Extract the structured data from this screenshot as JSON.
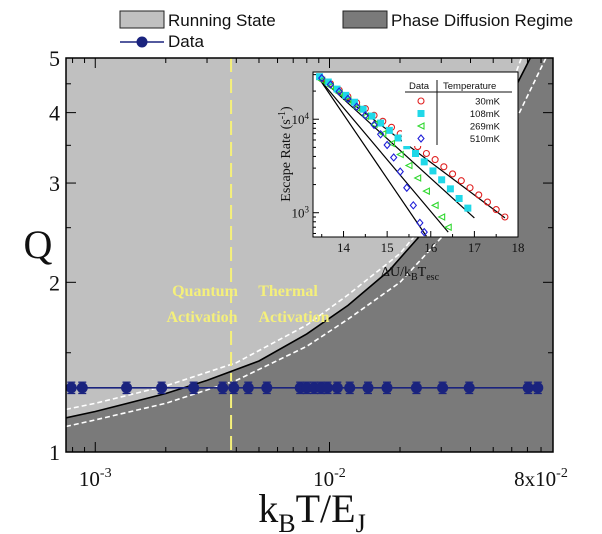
{
  "legend": {
    "items": [
      {
        "label": "Running State",
        "kind": "patch",
        "color": "#c0c0c0"
      },
      {
        "label": "Phase Diffusion Regime",
        "kind": "patch",
        "color": "#7a7a7a"
      },
      {
        "label": "Data",
        "kind": "line-marker",
        "color": "#1a237e"
      }
    ]
  },
  "annotations": {
    "quantum": [
      "Quantum",
      "Activation"
    ],
    "thermal": [
      "Thermal",
      "Activation"
    ],
    "annotation_color": "#f5f07a"
  },
  "chart_data": [
    {
      "type": "scatter",
      "role": "main",
      "xlabel": "kBT/EJ",
      "xlabel_parts": {
        "base1": "k",
        "sub1": "B",
        "base2": "T/E",
        "sub2": "J"
      },
      "ylabel": "Q",
      "x_scale": "log",
      "y_scale": "log",
      "xlim": [
        0.00075,
        0.09
      ],
      "ylim": [
        1.0,
        5.0
      ],
      "x_ticks": [
        {
          "value": 0.001,
          "base": "10",
          "exp": "-3"
        },
        {
          "value": 0.01,
          "base": "10",
          "exp": "-2"
        },
        {
          "value": 0.08,
          "base": "8x10",
          "exp": "-2"
        }
      ],
      "y_ticks": [
        {
          "value": 1,
          "label": "1"
        },
        {
          "value": 2,
          "label": "2"
        },
        {
          "value": 3,
          "label": "3"
        },
        {
          "value": 4,
          "label": "4"
        },
        {
          "value": 5,
          "label": "5"
        }
      ],
      "regions": {
        "running_color": "#c0c0c0",
        "phase_diffusion_color": "#7a7a7a"
      },
      "boundary_curve": [
        [
          0.00075,
          1.15
        ],
        [
          0.001,
          1.18
        ],
        [
          0.002,
          1.27
        ],
        [
          0.003,
          1.34
        ],
        [
          0.005,
          1.45
        ],
        [
          0.008,
          1.62
        ],
        [
          0.012,
          1.82
        ],
        [
          0.018,
          2.1
        ],
        [
          0.025,
          2.45
        ],
        [
          0.035,
          2.95
        ],
        [
          0.045,
          3.45
        ],
        [
          0.055,
          4.0
        ],
        [
          0.065,
          4.6
        ],
        [
          0.072,
          5.0
        ]
      ],
      "dashed_curves": [
        [
          [
            0.00075,
            1.19
          ],
          [
            0.001,
            1.22
          ],
          [
            0.002,
            1.31
          ],
          [
            0.004,
            1.44
          ],
          [
            0.008,
            1.68
          ],
          [
            0.012,
            1.9
          ],
          [
            0.02,
            2.25
          ],
          [
            0.03,
            2.75
          ],
          [
            0.045,
            3.6
          ],
          [
            0.06,
            4.5
          ],
          [
            0.066,
            5.0
          ]
        ],
        [
          [
            0.00075,
            1.11
          ],
          [
            0.001,
            1.14
          ],
          [
            0.002,
            1.22
          ],
          [
            0.004,
            1.34
          ],
          [
            0.008,
            1.54
          ],
          [
            0.012,
            1.72
          ],
          [
            0.02,
            2.0
          ],
          [
            0.03,
            2.4
          ],
          [
            0.045,
            3.05
          ],
          [
            0.06,
            3.75
          ],
          [
            0.08,
            4.8
          ],
          [
            0.084,
            5.0
          ]
        ]
      ],
      "crossover_x": 0.0038,
      "data": {
        "name": "Data",
        "q": 1.3,
        "q_err": 0.03,
        "x": [
          0.00079,
          0.00088,
          0.00136,
          0.00192,
          0.00263,
          0.0035,
          0.0039,
          0.0045,
          0.0054,
          0.0075,
          0.008,
          0.0086,
          0.0092,
          0.0098,
          0.0108,
          0.0122,
          0.0146,
          0.0176,
          0.0235,
          0.0304,
          0.0395,
          0.0705,
          0.0775
        ]
      },
      "data_color": "#1a237e"
    },
    {
      "type": "scatter",
      "role": "inset",
      "xlabel": "ΔU/kBTesc",
      "xlabel_parts": {
        "base1": "ΔU/k",
        "sub1": "B",
        "base2": "T",
        "sub2": "esc"
      },
      "ylabel": "Escape Rate (s-1)",
      "ylabel_parts": {
        "base": "Escape Rate (s",
        "sup": "-1",
        "end": ")"
      },
      "x_scale": "linear",
      "y_scale": "log",
      "xlim": [
        13.3,
        18.0
      ],
      "ylim": [
        550,
        32000
      ],
      "x_ticks": [
        14,
        15,
        16,
        17,
        18
      ],
      "y_ticks": [
        {
          "value": 1000,
          "base": "10",
          "exp": "3"
        },
        {
          "value": 10000,
          "base": "10",
          "exp": "4"
        }
      ],
      "legend_header": [
        "Data",
        "Temperature"
      ],
      "series": [
        {
          "name": "30mK",
          "marker": "circle",
          "color": "#e02020",
          "points": [
            [
              13.5,
              27000
            ],
            [
              13.7,
              24000
            ],
            [
              13.9,
              20500
            ],
            [
              14.1,
              17500
            ],
            [
              14.3,
              15000
            ],
            [
              14.5,
              13000
            ],
            [
              14.7,
              11000
            ],
            [
              14.9,
              9500
            ],
            [
              15.1,
              8200
            ],
            [
              15.3,
              7000
            ],
            [
              15.5,
              6000
            ],
            [
              15.7,
              5100
            ],
            [
              15.9,
              4300
            ],
            [
              16.1,
              3700
            ],
            [
              16.3,
              3100
            ],
            [
              16.5,
              2600
            ],
            [
              16.7,
              2200
            ],
            [
              16.9,
              1850
            ],
            [
              17.1,
              1550
            ],
            [
              17.3,
              1300
            ],
            [
              17.5,
              1080
            ],
            [
              17.7,
              900
            ]
          ],
          "fit": [
            [
              13.4,
              28000
            ],
            [
              17.7,
              880
            ]
          ]
        },
        {
          "name": "108mK",
          "marker": "square",
          "color": "#20d8e8",
          "points": [
            [
              13.45,
              28500
            ],
            [
              13.65,
              25000
            ],
            [
              13.85,
              21000
            ],
            [
              14.05,
              18000
            ],
            [
              14.25,
              15200
            ],
            [
              14.45,
              12800
            ],
            [
              14.65,
              10800
            ],
            [
              14.85,
              9100
            ],
            [
              15.05,
              7600
            ],
            [
              15.25,
              6300
            ],
            [
              15.45,
              5200
            ],
            [
              15.65,
              4300
            ],
            [
              15.85,
              3500
            ],
            [
              16.05,
              2800
            ],
            [
              16.25,
              2250
            ],
            [
              16.45,
              1800
            ],
            [
              16.65,
              1420
            ],
            [
              16.85,
              1120
            ]
          ],
          "fit": [
            [
              13.4,
              29500
            ],
            [
              17.0,
              880
            ]
          ]
        },
        {
          "name": "269mK",
          "marker": "triangle",
          "color": "#30d830",
          "points": [
            [
              13.5,
              26000
            ],
            [
              13.7,
              22500
            ],
            [
              13.9,
              19000
            ],
            [
              14.1,
              16000
            ],
            [
              14.3,
              13200
            ],
            [
              14.5,
              10800
            ],
            [
              14.7,
              8800
            ],
            [
              14.9,
              7000
            ],
            [
              15.1,
              5500
            ],
            [
              15.3,
              4200
            ],
            [
              15.5,
              3200
            ],
            [
              15.7,
              2350
            ],
            [
              15.9,
              1700
            ],
            [
              16.1,
              1200
            ],
            [
              16.25,
              900
            ],
            [
              16.4,
              700
            ]
          ],
          "fit": [
            [
              13.4,
              28500
            ],
            [
              16.4,
              620
            ]
          ]
        },
        {
          "name": "510mK",
          "marker": "diamond",
          "color": "#2020d8",
          "points": [
            [
              13.5,
              27500
            ],
            [
              13.7,
              23500
            ],
            [
              13.9,
              19800
            ],
            [
              14.1,
              16500
            ],
            [
              14.3,
              13600
            ],
            [
              14.5,
              11000
            ],
            [
              14.7,
              8700
            ],
            [
              14.85,
              6900
            ],
            [
              15.0,
              5300
            ],
            [
              15.15,
              3900
            ],
            [
              15.3,
              2750
            ],
            [
              15.45,
              1850
            ],
            [
              15.6,
              1200
            ],
            [
              15.75,
              780
            ],
            [
              15.85,
              620
            ]
          ],
          "fit": [
            [
              13.4,
              29000
            ],
            [
              15.9,
              560
            ]
          ]
        }
      ]
    }
  ]
}
